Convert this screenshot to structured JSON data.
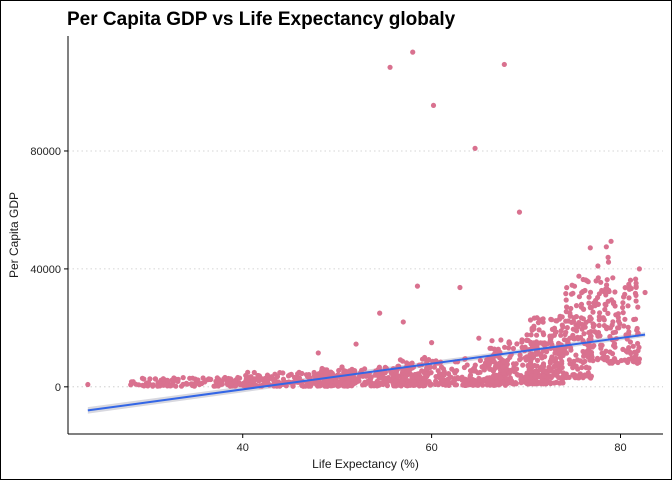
{
  "chart_data": {
    "type": "scatter",
    "title": "Per Capita GDP vs Life Expectancy globaly",
    "xlabel": "Life Expectancy (%)",
    "ylabel": "Per Capita GDP",
    "xlim": [
      21.5,
      84.5
    ],
    "ylim": [
      -16000,
      119000
    ],
    "x_ticks": [
      40,
      60,
      80
    ],
    "y_ticks": [
      0,
      40000,
      80000
    ],
    "grid": "horizontal dotted at y ticks",
    "legend": "none",
    "point_color": "#d9718f",
    "fit_line_color": "#3366e6",
    "ribbon_color": "#c8c8d2",
    "outliers": [
      {
        "x": 23.6,
        "y": 780
      },
      {
        "x": 55.6,
        "y": 108382
      },
      {
        "x": 58.0,
        "y": 113523
      },
      {
        "x": 60.2,
        "y": 95458
      },
      {
        "x": 67.7,
        "y": 109348
      },
      {
        "x": 64.6,
        "y": 80894
      },
      {
        "x": 69.3,
        "y": 59265
      },
      {
        "x": 58.5,
        "y": 34167
      },
      {
        "x": 63.0,
        "y": 33693
      },
      {
        "x": 57.0,
        "y": 22000
      },
      {
        "x": 54.5,
        "y": 25000
      },
      {
        "x": 76.8,
        "y": 47143
      },
      {
        "x": 79.0,
        "y": 49357
      },
      {
        "x": 78.5,
        "y": 47500
      },
      {
        "x": 48.0,
        "y": 11500
      },
      {
        "x": 52.0,
        "y": 14500
      },
      {
        "x": 60.0,
        "y": 15000
      },
      {
        "x": 65.0,
        "y": 16500
      },
      {
        "x": 82.6,
        "y": 32000
      },
      {
        "x": 82.0,
        "y": 40000
      }
    ],
    "bulk_regions": [
      {
        "x_range": [
          28,
          44
        ],
        "y_range": [
          200,
          3200
        ],
        "n": 140
      },
      {
        "x_range": [
          40,
          52
        ],
        "y_range": [
          200,
          5000
        ],
        "n": 180
      },
      {
        "x_range": [
          48,
          60
        ],
        "y_range": [
          300,
          7000
        ],
        "n": 220
      },
      {
        "x_range": [
          56,
          68
        ],
        "y_range": [
          500,
          10000
        ],
        "n": 240
      },
      {
        "x_range": [
          66,
          74
        ],
        "y_range": [
          1000,
          16000
        ],
        "n": 230
      },
      {
        "x_range": [
          70,
          77
        ],
        "y_range": [
          3000,
          24000
        ],
        "n": 200
      },
      {
        "x_range": [
          74,
          82
        ],
        "y_range": [
          8000,
          38000
        ],
        "n": 180
      },
      {
        "x_range": [
          76,
          80
        ],
        "y_range": [
          20000,
          45000
        ],
        "n": 40
      }
    ],
    "fit_line": {
      "x": [
        23.6,
        82.6
      ],
      "y": [
        -8000,
        17700
      ]
    },
    "ribbon_halfwidth": [
      1100,
      800
    ]
  }
}
